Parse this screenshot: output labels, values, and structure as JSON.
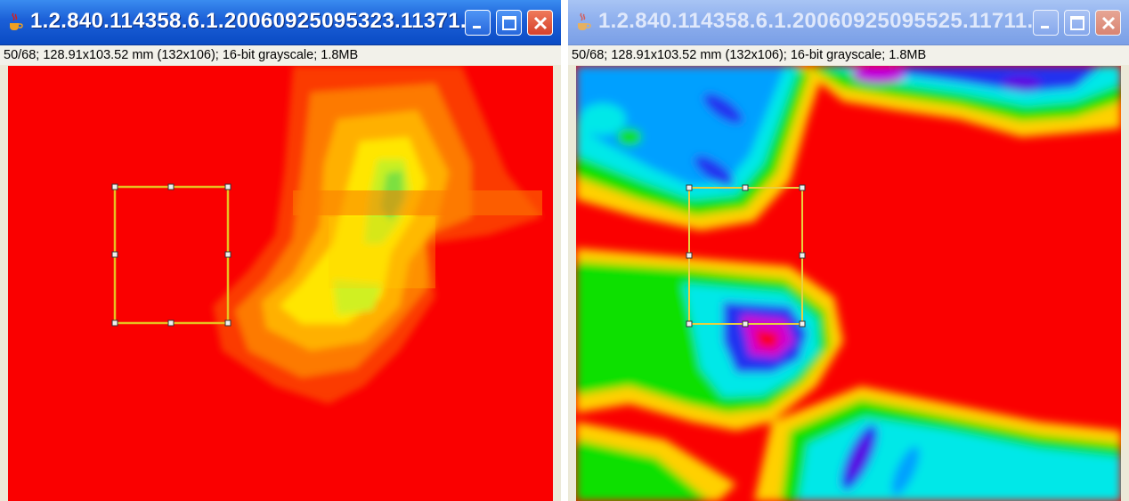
{
  "windows": [
    {
      "title": "1.2.840.114358.6.1.20060925095323.11371...",
      "active": true,
      "status": "50/68; 128.91x103.52 mm (132x106); 16-bit grayscale; 1.8MB",
      "app_icon": "java-cup-icon",
      "buttons": [
        "minimize-icon",
        "maximize-icon",
        "close-icon"
      ]
    },
    {
      "title": "1.2.840.114358.6.1.20060925095525.11711...",
      "active": false,
      "status": "50/68; 128.91x103.52 mm (132x106); 16-bit grayscale; 1.8MB",
      "app_icon": "java-cup-icon",
      "buttons": [
        "minimize-icon",
        "maximize-icon",
        "close-icon"
      ]
    }
  ],
  "colors": {
    "titlebar_active": "#1b5fd7",
    "titlebar_inactive": "#8fb0ee",
    "image_background": "#fa0000",
    "roi_outline": "#e8c020"
  }
}
